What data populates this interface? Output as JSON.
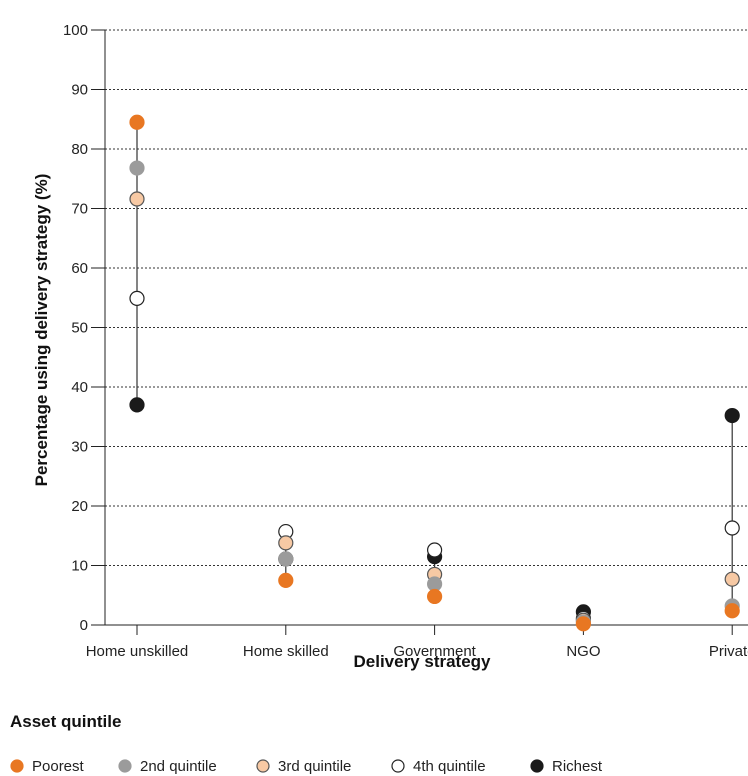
{
  "chart_data": {
    "type": "scatter",
    "xlabel": "Delivery strategy",
    "ylabel": "Percentage using delivery strategy (%)",
    "ylim": [
      0,
      100
    ],
    "yticks": [
      0,
      10,
      20,
      30,
      40,
      50,
      60,
      70,
      80,
      90,
      100
    ],
    "grid": "horizontal dotted",
    "categories": [
      "Home unskilled",
      "Home skilled",
      "Government",
      "NGO",
      "Private"
    ],
    "legend_title": "Asset quintile",
    "legend_position": "bottom",
    "series": [
      {
        "name": "Poorest",
        "color": "#e87722",
        "stroke": "#e87722",
        "values": [
          84.5,
          7.5,
          4.8,
          0.2,
          2.4
        ]
      },
      {
        "name": "2nd quintile",
        "color": "#9b9b9b",
        "stroke": "#9b9b9b",
        "values": [
          76.8,
          11.1,
          6.9,
          0.5,
          3.2
        ]
      },
      {
        "name": "3rd quintile",
        "color": "#f7c9a4",
        "stroke": "#555555",
        "values": [
          71.6,
          13.8,
          8.5,
          0.8,
          7.7
        ]
      },
      {
        "name": "4th quintile",
        "color": "#ffffff",
        "stroke": "#222222",
        "values": [
          54.9,
          15.7,
          12.6,
          1.1,
          16.3
        ]
      },
      {
        "name": "Richest",
        "color": "#1a1a1a",
        "stroke": "#1a1a1a",
        "values": [
          37.0,
          11.1,
          11.5,
          2.2,
          35.2
        ]
      }
    ]
  }
}
